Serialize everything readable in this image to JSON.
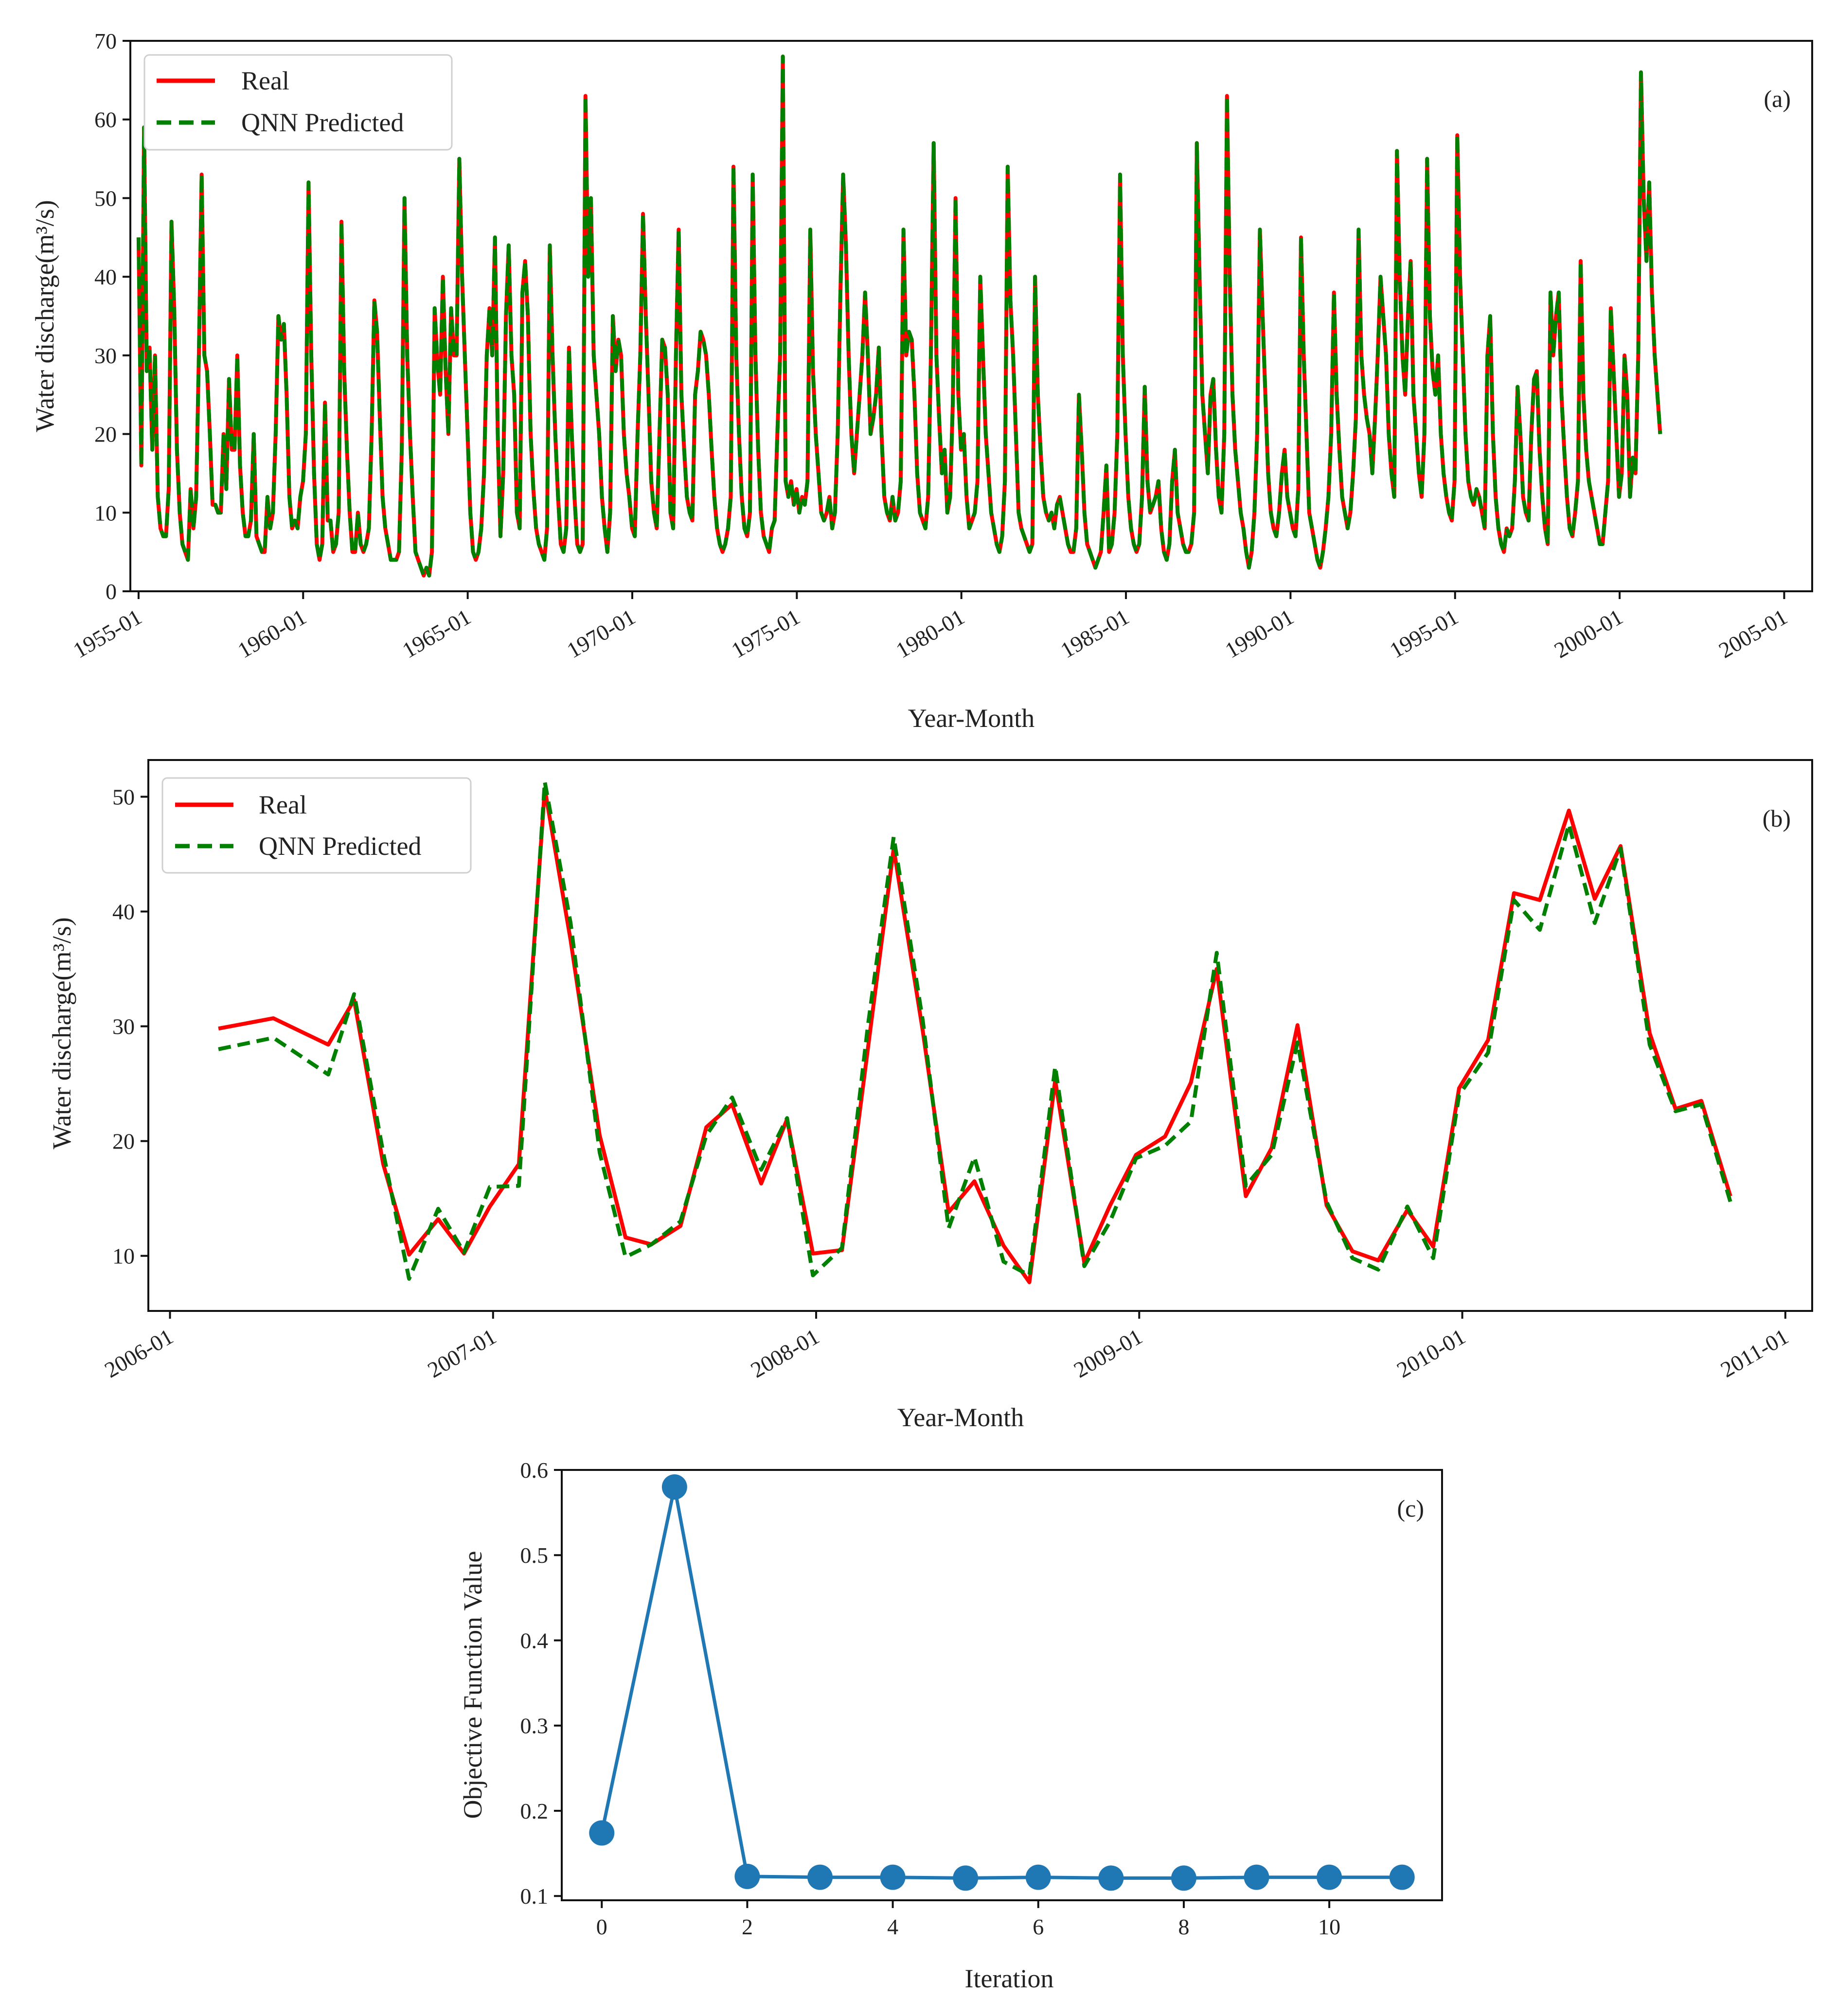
{
  "chart_data": [
    {
      "type": "line",
      "panel_label": "(a)",
      "xlabel": "Year-Month",
      "ylabel": "Water discharge(m³/s)",
      "ylim": [
        0,
        70
      ],
      "yticks": [
        0,
        10,
        20,
        30,
        40,
        50,
        60,
        70
      ],
      "xlim": [
        1954.75,
        2005.85
      ],
      "xticks": [
        {
          "value": 1955,
          "label": "1955-01"
        },
        {
          "value": 1960,
          "label": "1960-01"
        },
        {
          "value": 1965,
          "label": "1965-01"
        },
        {
          "value": 1970,
          "label": "1970-01"
        },
        {
          "value": 1975,
          "label": "1975-01"
        },
        {
          "value": 1980,
          "label": "1980-01"
        },
        {
          "value": 1985,
          "label": "1985-01"
        },
        {
          "value": 1990,
          "label": "1990-01"
        },
        {
          "value": 1995,
          "label": "1995-01"
        },
        {
          "value": 2000,
          "label": "2000-01"
        },
        {
          "value": 2005,
          "label": "2005-01"
        }
      ],
      "legend_position": "top-left",
      "series": [
        {
          "name": "Real",
          "color": "#ff0000",
          "style": "solid"
        },
        {
          "name": "QNN Predicted",
          "color": "#008000",
          "style": "dashed"
        }
      ],
      "x_start": 1955.0,
      "x_step": 0.0833,
      "values": [
        45,
        16,
        59,
        28,
        31,
        18,
        30,
        12,
        8,
        7,
        7,
        13,
        47,
        36,
        18,
        10,
        6,
        5,
        4,
        13,
        8,
        12,
        30,
        53,
        30,
        28,
        20,
        11,
        11,
        10,
        10,
        20,
        13,
        27,
        18,
        18,
        30,
        16,
        10,
        7,
        7,
        9,
        20,
        7,
        6,
        5,
        5,
        12,
        8,
        10,
        20,
        35,
        32,
        34,
        25,
        12,
        8,
        9,
        8,
        12,
        14,
        20,
        52,
        30,
        15,
        6,
        4,
        6,
        24,
        9,
        9,
        5,
        6,
        10,
        47,
        28,
        18,
        10,
        5,
        5,
        10,
        6,
        5,
        6,
        8,
        20,
        37,
        33,
        22,
        12,
        8,
        6,
        4,
        4,
        4,
        5,
        18,
        50,
        30,
        20,
        12,
        5,
        4,
        3,
        2,
        3,
        2,
        5,
        36,
        29,
        25,
        40,
        28,
        20,
        36,
        30,
        30,
        55,
        40,
        30,
        20,
        10,
        5,
        4,
        5,
        8,
        15,
        30,
        36,
        30,
        45,
        20,
        7,
        15,
        35,
        44,
        30,
        25,
        10,
        8,
        38,
        42,
        35,
        20,
        13,
        8,
        6,
        5,
        4,
        8,
        44,
        30,
        20,
        12,
        6,
        5,
        8,
        31,
        20,
        12,
        6,
        5,
        6,
        63,
        40,
        50,
        30,
        25,
        20,
        12,
        8,
        5,
        10,
        35,
        28,
        32,
        30,
        20,
        15,
        12,
        8,
        7,
        20,
        30,
        48,
        35,
        25,
        14,
        10,
        8,
        20,
        32,
        31,
        25,
        10,
        8,
        30,
        46,
        25,
        18,
        12,
        10,
        9,
        25,
        28,
        33,
        32,
        30,
        25,
        18,
        12,
        8,
        6,
        5,
        6,
        8,
        12,
        54,
        30,
        20,
        12,
        8,
        7,
        10,
        53,
        30,
        18,
        10,
        7,
        6,
        5,
        8,
        9,
        20,
        30,
        68,
        14,
        12,
        14,
        11,
        13,
        10,
        12,
        11,
        14,
        46,
        28,
        20,
        15,
        10,
        9,
        10,
        12,
        8,
        10,
        20,
        38,
        53,
        44,
        30,
        20,
        15,
        20,
        25,
        30,
        38,
        30,
        20,
        22,
        25,
        31,
        20,
        12,
        10,
        9,
        12,
        9,
        10,
        14,
        46,
        30,
        33,
        32,
        25,
        15,
        10,
        9,
        8,
        12,
        30,
        57,
        30,
        22,
        15,
        18,
        10,
        12,
        24,
        50,
        25,
        18,
        20,
        12,
        8,
        9,
        10,
        14,
        40,
        30,
        20,
        15,
        10,
        8,
        6,
        5,
        7,
        14,
        54,
        37,
        30,
        20,
        10,
        8,
        7,
        6,
        5,
        6,
        40,
        25,
        18,
        12,
        10,
        9,
        10,
        8,
        11,
        12,
        10,
        8,
        6,
        5,
        5,
        8,
        25,
        18,
        10,
        6,
        5,
        4,
        3,
        4,
        5,
        10,
        16,
        5,
        6,
        10,
        20,
        53,
        30,
        20,
        12,
        8,
        6,
        5,
        6,
        12,
        26,
        14,
        10,
        11,
        12,
        14,
        8,
        5,
        4,
        6,
        14,
        18,
        10,
        8,
        6,
        5,
        5,
        6,
        10,
        57,
        40,
        25,
        20,
        15,
        25,
        27,
        18,
        12,
        10,
        20,
        63,
        40,
        25,
        18,
        14,
        10,
        8,
        5,
        3,
        5,
        10,
        20,
        46,
        35,
        25,
        15,
        10,
        8,
        7,
        10,
        15,
        18,
        12,
        10,
        8,
        7,
        13,
        45,
        30,
        20,
        10,
        8,
        6,
        4,
        3,
        5,
        8,
        12,
        20,
        38,
        25,
        18,
        12,
        10,
        8,
        10,
        15,
        22,
        46,
        30,
        25,
        22,
        20,
        15,
        22,
        30,
        40,
        35,
        30,
        20,
        15,
        12,
        56,
        40,
        30,
        25,
        35,
        42,
        25,
        20,
        15,
        12,
        20,
        55,
        35,
        28,
        25,
        30,
        20,
        15,
        12,
        10,
        9,
        14,
        58,
        40,
        30,
        20,
        14,
        12,
        11,
        13,
        12,
        10,
        8,
        30,
        35,
        20,
        12,
        8,
        6,
        5,
        8,
        7,
        8,
        14,
        26,
        20,
        12,
        10,
        9,
        20,
        27,
        28,
        18,
        12,
        8,
        6,
        38,
        30,
        35,
        38,
        25,
        18,
        12,
        8,
        7,
        10,
        14,
        42,
        25,
        18,
        14,
        12,
        10,
        8,
        6,
        6,
        10,
        14,
        36,
        28,
        20,
        12,
        15,
        30,
        25,
        12,
        17,
        15,
        30,
        66,
        50,
        42,
        52,
        38,
        30,
        25,
        20
      ]
    },
    {
      "type": "line",
      "panel_label": "(b)",
      "xlabel": "Year-Month",
      "ylabel": "Water discharge(m³/s)",
      "ylim": [
        5.2,
        53.2
      ],
      "yticks": [
        10,
        20,
        30,
        40,
        50
      ],
      "xlim": [
        2005.933,
        2011.083
      ],
      "xticks": [
        {
          "value": 2006.0,
          "label": "2006-01"
        },
        {
          "value": 2007.0,
          "label": "2007-01"
        },
        {
          "value": 2008.0,
          "label": "2008-01"
        },
        {
          "value": 2009.0,
          "label": "2009-01"
        },
        {
          "value": 2010.0,
          "label": "2010-01"
        },
        {
          "value": 2011.0,
          "label": "2011-01"
        }
      ],
      "legend_position": "top-left",
      "x": [
        2006.15,
        2006.32,
        2006.49,
        2006.57,
        2006.66,
        2006.74,
        2006.83,
        2006.91,
        2006.99,
        2007.08,
        2007.16,
        2007.24,
        2007.33,
        2007.41,
        2007.49,
        2007.58,
        2007.66,
        2007.74,
        2007.83,
        2007.91,
        2007.99,
        2008.08,
        2008.16,
        2008.24,
        2008.33,
        2008.41,
        2008.49,
        2008.58,
        2008.66,
        2008.74,
        2008.83,
        2008.91,
        2008.99,
        2009.08,
        2009.16,
        2009.24,
        2009.33,
        2009.41,
        2009.49,
        2009.58,
        2009.66,
        2009.74,
        2009.83,
        2009.91,
        2009.99,
        2010.08,
        2010.16,
        2010.24,
        2010.33,
        2010.41,
        2010.49,
        2010.58,
        2010.66,
        2010.74,
        2010.83
      ],
      "series": [
        {
          "name": "Real",
          "color": "#ff0000",
          "style": "solid",
          "values": [
            29.8,
            30.7,
            28.4,
            32.3,
            18.0,
            10.1,
            13.2,
            10.2,
            14.3,
            18.0,
            50.7,
            37.5,
            20.5,
            11.6,
            11.0,
            12.6,
            21.2,
            23.2,
            16.3,
            21.9,
            10.2,
            10.5,
            28.0,
            45.5,
            29.6,
            13.8,
            16.5,
            10.9,
            7.7,
            25.3,
            9.4,
            14.4,
            18.8,
            20.4,
            25.1,
            35.0,
            15.2,
            19.4,
            30.1,
            14.4,
            10.4,
            9.6,
            14.0,
            10.8,
            24.6,
            28.8,
            41.6,
            41.0,
            48.8,
            41.1,
            45.7,
            29.4,
            22.8,
            23.5,
            15.2
          ]
        },
        {
          "name": "QNN Predicted",
          "color": "#008000",
          "style": "dashed",
          "values": [
            28.0,
            29.0,
            25.8,
            32.8,
            19.0,
            8.0,
            14.1,
            10.3,
            16.0,
            16.1,
            51.3,
            39.0,
            19.0,
            9.9,
            11.0,
            13.0,
            20.5,
            23.8,
            17.5,
            22.0,
            8.3,
            10.7,
            30.0,
            46.5,
            30.5,
            12.4,
            18.6,
            9.5,
            8.3,
            26.5,
            9.1,
            13.0,
            18.5,
            19.6,
            21.7,
            36.4,
            16.1,
            18.8,
            28.6,
            14.7,
            9.8,
            8.8,
            14.3,
            9.8,
            24.0,
            27.7,
            41.0,
            38.4,
            47.6,
            39.0,
            45.5,
            28.4,
            22.6,
            23.2,
            14.7
          ]
        }
      ]
    },
    {
      "type": "line",
      "panel_label": "(c)",
      "xlabel": "Iteration",
      "ylabel": "Objective Function Value",
      "ylim": [
        0.095,
        0.6
      ],
      "yticks": [
        0.1,
        0.2,
        0.3,
        0.4,
        0.5,
        0.6
      ],
      "ytick_labels": [
        "0.1",
        "0.2",
        "0.3",
        "0.4",
        "0.5",
        "0.6"
      ],
      "xlim": [
        -0.55,
        11.55
      ],
      "xticks": [
        0,
        2,
        4,
        6,
        8,
        10
      ],
      "categories": [
        0,
        1,
        2,
        3,
        4,
        5,
        6,
        7,
        8,
        9,
        10,
        11
      ],
      "series": [
        {
          "name": "Objective Function Value",
          "color": "#1f77b4",
          "marker": "circle",
          "values": [
            0.174,
            0.58,
            0.123,
            0.122,
            0.122,
            0.121,
            0.122,
            0.121,
            0.121,
            0.122,
            0.122,
            0.122
          ]
        }
      ]
    }
  ]
}
